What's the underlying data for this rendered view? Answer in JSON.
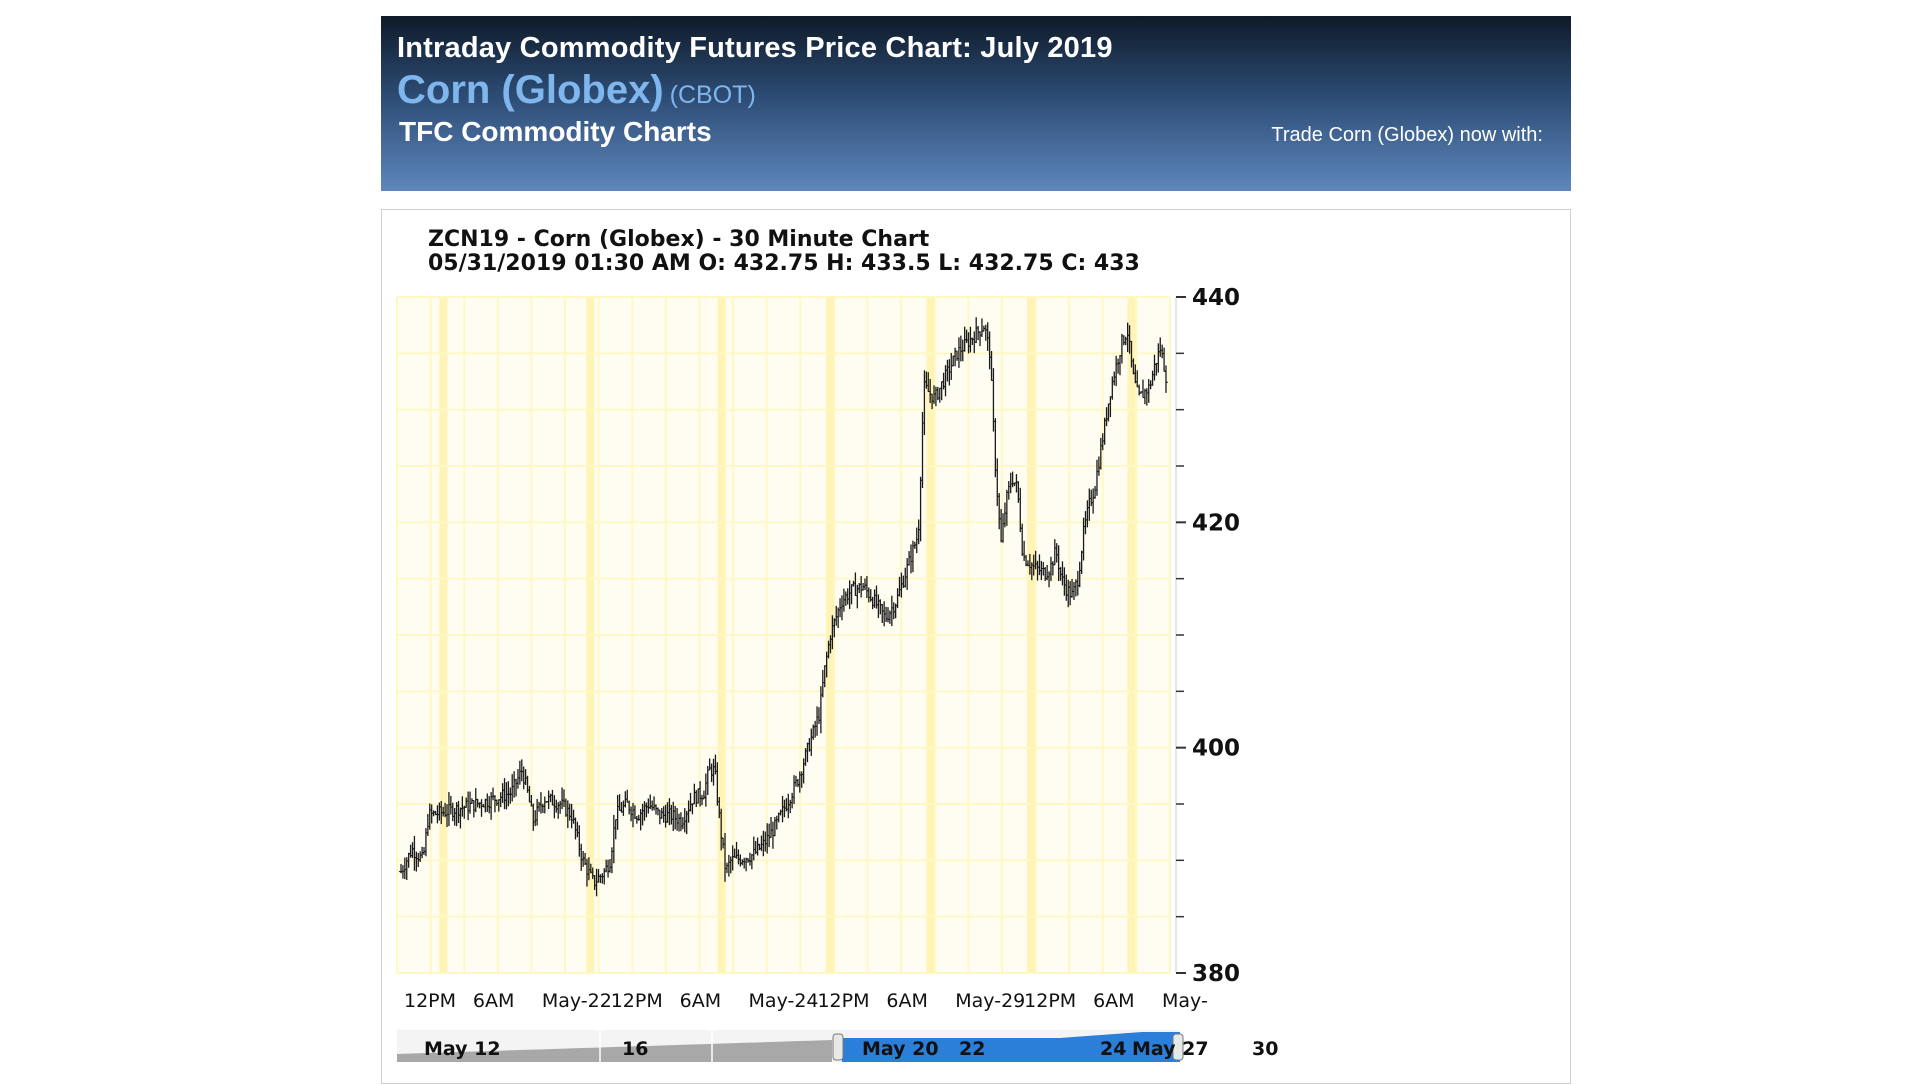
{
  "header": {
    "title": "Intraday Commodity Futures Price Chart: July 2019",
    "name": "Corn (Globex)",
    "exchange": "(CBOT)",
    "brand": "TFC Commodity Charts",
    "trade_text": "Trade Corn (Globex) now with:"
  },
  "colors": {
    "header_top": "#0f1a29",
    "header_bottom": "#5e87bd",
    "name_blue": "#7fb6ee",
    "grid_yellow": "#fff8c4",
    "grid_yellow_strong": "#fff2a8",
    "navigator_blue": "#2b7fd9",
    "navigator_grey": "#a8a8a8"
  },
  "chart_data": {
    "type": "ohlc",
    "title": "ZCN19 - Corn (Globex) - 30 Minute Chart",
    "ohlc_readout": "05/31/2019 01:30 AM O: 432.75 H: 433.5 L: 432.75 C: 433",
    "ylim": [
      380,
      440
    ],
    "y_ticks": [
      380,
      400,
      420,
      440
    ],
    "y_minor_ticks": [
      385,
      390,
      395,
      405,
      410,
      415,
      425,
      430,
      435
    ],
    "x_tick_labels": [
      "12PM",
      "6AM",
      "May-22",
      "12PM",
      "6AM",
      "May-24",
      "12PM",
      "6AM",
      "May-29",
      "12PM",
      "6AM",
      "May-"
    ],
    "grid": true,
    "price_path": [
      [
        0,
        389
      ],
      [
        2,
        391
      ],
      [
        4,
        390
      ],
      [
        5,
        394
      ],
      [
        8,
        394.3
      ],
      [
        12,
        394.8
      ],
      [
        16,
        395.3
      ],
      [
        20,
        396
      ],
      [
        22,
        398
      ],
      [
        23,
        396
      ],
      [
        24,
        393.5
      ],
      [
        26,
        395.5
      ],
      [
        29,
        395
      ],
      [
        31,
        394
      ],
      [
        33,
        390
      ],
      [
        35,
        388
      ],
      [
        37,
        389
      ],
      [
        38,
        390
      ],
      [
        39,
        394
      ],
      [
        41,
        395
      ],
      [
        43,
        394
      ],
      [
        45,
        395
      ],
      [
        47,
        394
      ],
      [
        49,
        394
      ],
      [
        51,
        393.5
      ],
      [
        53,
        395.5
      ],
      [
        55,
        396
      ],
      [
        56,
        398
      ],
      [
        57,
        398
      ],
      [
        58,
        393
      ],
      [
        59,
        389
      ],
      [
        60,
        390
      ],
      [
        62,
        390.2
      ],
      [
        64,
        390.5
      ],
      [
        66,
        391.5
      ],
      [
        68,
        393
      ],
      [
        70,
        395
      ],
      [
        72,
        397
      ],
      [
        74,
        400
      ],
      [
        76,
        403
      ],
      [
        77,
        407
      ],
      [
        78,
        410
      ],
      [
        80,
        413
      ],
      [
        82,
        414
      ],
      [
        84,
        414.3
      ],
      [
        86,
        413
      ],
      [
        88,
        411.5
      ],
      [
        90,
        413
      ],
      [
        92,
        416
      ],
      [
        94,
        419
      ],
      [
        95,
        432
      ],
      [
        97,
        431
      ],
      [
        99,
        433
      ],
      [
        101,
        435
      ],
      [
        103,
        436
      ],
      [
        105,
        437
      ],
      [
        106,
        437.5
      ],
      [
        107,
        435
      ],
      [
        108,
        425
      ],
      [
        109,
        418
      ],
      [
        110,
        422
      ],
      [
        111,
        424
      ],
      [
        112,
        423
      ],
      [
        113,
        417
      ],
      [
        115,
        416
      ],
      [
        117,
        415.5
      ],
      [
        118,
        416
      ],
      [
        119,
        417.5
      ],
      [
        120,
        415
      ],
      [
        121,
        414
      ],
      [
        122,
        413.5
      ],
      [
        123,
        415
      ],
      [
        124,
        419
      ],
      [
        125,
        421.5
      ],
      [
        126,
        423
      ],
      [
        127,
        426
      ],
      [
        128,
        429
      ],
      [
        129,
        432
      ],
      [
        130,
        434
      ],
      [
        131,
        436
      ],
      [
        132,
        437
      ],
      [
        133,
        433
      ],
      [
        134,
        431
      ],
      [
        135,
        431.5
      ],
      [
        136,
        432
      ],
      [
        137,
        434
      ],
      [
        138,
        435.5
      ],
      [
        139,
        433
      ]
    ],
    "session_starts": [
      0.06,
      0.25,
      0.42,
      0.56,
      0.69,
      0.82,
      0.95
    ],
    "navigator": {
      "labels": [
        "May 12",
        "16",
        "May 20",
        "22",
        "24",
        "May 27",
        "30"
      ]
    }
  }
}
